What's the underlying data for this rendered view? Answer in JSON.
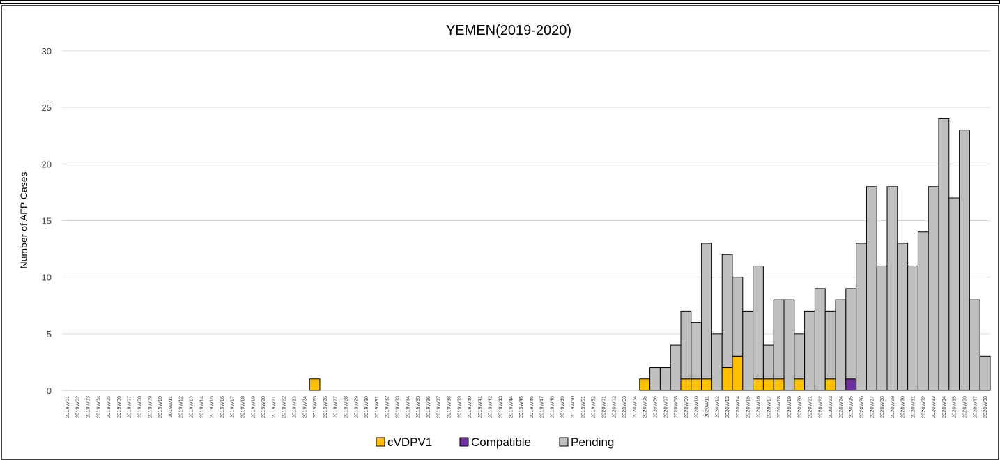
{
  "chart_data": {
    "type": "bar",
    "stacked": true,
    "title": "YEMEN(2019-2020)",
    "xlabel": "",
    "ylabel": "Number of AFP Cases",
    "ylim": [
      0,
      30
    ],
    "yticks": [
      0,
      5,
      10,
      15,
      20,
      25,
      30
    ],
    "grid": true,
    "legend_position": "bottom",
    "categories": [
      "2019W01",
      "2019W02",
      "2019W03",
      "2019W04",
      "2019W05",
      "2019W06",
      "2019W07",
      "2019W08",
      "2019W09",
      "2019W10",
      "2019W11",
      "2019W12",
      "2019W13",
      "2019W14",
      "2019W15",
      "2019W16",
      "2019W17",
      "2019W18",
      "2019W19",
      "2019W20",
      "2019W21",
      "2019W22",
      "2019W23",
      "2019W24",
      "2019W25",
      "2019W26",
      "2019W27",
      "2019W28",
      "2019W29",
      "2019W30",
      "2019W31",
      "2019W32",
      "2019W33",
      "2019W34",
      "2019W35",
      "2019W36",
      "2019W37",
      "2019W38",
      "2019W39",
      "2019W40",
      "2019W41",
      "2019W42",
      "2019W43",
      "2019W44",
      "2019W45",
      "2019W46",
      "2019W47",
      "2019W48",
      "2019W49",
      "2019W50",
      "2019W51",
      "2019W52",
      "2020W01",
      "2020W02",
      "2020W03",
      "2020W04",
      "2020W05",
      "2020W06",
      "2020W07",
      "2020W08",
      "2020W09",
      "2020W10",
      "2020W11",
      "2020W12",
      "2020W13",
      "2020W14",
      "2020W15",
      "2020W16",
      "2020W17",
      "2020W18",
      "2020W19",
      "2020W20",
      "2020W21",
      "2020W22",
      "2020W23",
      "2020W24",
      "2020W25",
      "2020W26",
      "2020W27",
      "2020W28",
      "2020W29",
      "2020W30",
      "2020W31",
      "2020W32",
      "2020W33",
      "2020W34",
      "2020W35",
      "2020W36",
      "2020W37",
      "2020W38"
    ],
    "series": [
      {
        "name": "cVDPV1",
        "color": "#FFC000",
        "values": [
          0,
          0,
          0,
          0,
          0,
          0,
          0,
          0,
          0,
          0,
          0,
          0,
          0,
          0,
          0,
          0,
          0,
          0,
          0,
          0,
          0,
          0,
          0,
          0,
          1,
          0,
          0,
          0,
          0,
          0,
          0,
          0,
          0,
          0,
          0,
          0,
          0,
          0,
          0,
          0,
          0,
          0,
          0,
          0,
          0,
          0,
          0,
          0,
          0,
          0,
          0,
          0,
          0,
          0,
          0,
          0,
          1,
          0,
          0,
          0,
          1,
          1,
          1,
          0,
          2,
          3,
          0,
          1,
          1,
          1,
          0,
          1,
          0,
          0,
          1,
          0,
          0,
          0,
          0,
          0,
          0,
          0,
          0,
          0,
          0,
          0,
          0,
          0,
          0,
          0
        ]
      },
      {
        "name": "Compatible",
        "color": "#7030A0",
        "values": [
          0,
          0,
          0,
          0,
          0,
          0,
          0,
          0,
          0,
          0,
          0,
          0,
          0,
          0,
          0,
          0,
          0,
          0,
          0,
          0,
          0,
          0,
          0,
          0,
          0,
          0,
          0,
          0,
          0,
          0,
          0,
          0,
          0,
          0,
          0,
          0,
          0,
          0,
          0,
          0,
          0,
          0,
          0,
          0,
          0,
          0,
          0,
          0,
          0,
          0,
          0,
          0,
          0,
          0,
          0,
          0,
          0,
          0,
          0,
          0,
          0,
          0,
          0,
          0,
          0,
          0,
          0,
          0,
          0,
          0,
          0,
          0,
          0,
          0,
          0,
          0,
          1,
          0,
          0,
          0,
          0,
          0,
          0,
          0,
          0,
          0,
          0,
          0,
          0,
          0
        ]
      },
      {
        "name": "Pending",
        "color": "#BFBFBF",
        "values": [
          0,
          0,
          0,
          0,
          0,
          0,
          0,
          0,
          0,
          0,
          0,
          0,
          0,
          0,
          0,
          0,
          0,
          0,
          0,
          0,
          0,
          0,
          0,
          0,
          0,
          0,
          0,
          0,
          0,
          0,
          0,
          0,
          0,
          0,
          0,
          0,
          0,
          0,
          0,
          0,
          0,
          0,
          0,
          0,
          0,
          0,
          0,
          0,
          0,
          0,
          0,
          0,
          0,
          0,
          0,
          0,
          0,
          2,
          2,
          4,
          6,
          5,
          12,
          5,
          10,
          7,
          7,
          10,
          3,
          7,
          8,
          4,
          7,
          9,
          6,
          8,
          8,
          13,
          18,
          11,
          18,
          13,
          11,
          14,
          18,
          24,
          17,
          23,
          8,
          3
        ]
      }
    ]
  }
}
